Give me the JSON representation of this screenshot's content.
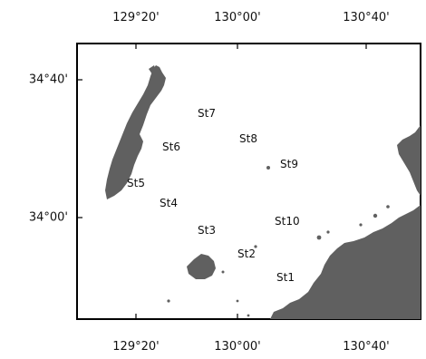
{
  "map": {
    "lon_ticks": [
      "129°20'",
      "130°00'",
      "130°40'"
    ],
    "lat_ticks": [
      "34°40'",
      "34°00'"
    ],
    "stations": [
      "St1",
      "St2",
      "St3",
      "St4",
      "St5",
      "St6",
      "St7",
      "St8",
      "St9",
      "St10"
    ],
    "colors": {
      "land": "#606060",
      "water": "#ffffff",
      "frame": "#000000"
    }
  }
}
